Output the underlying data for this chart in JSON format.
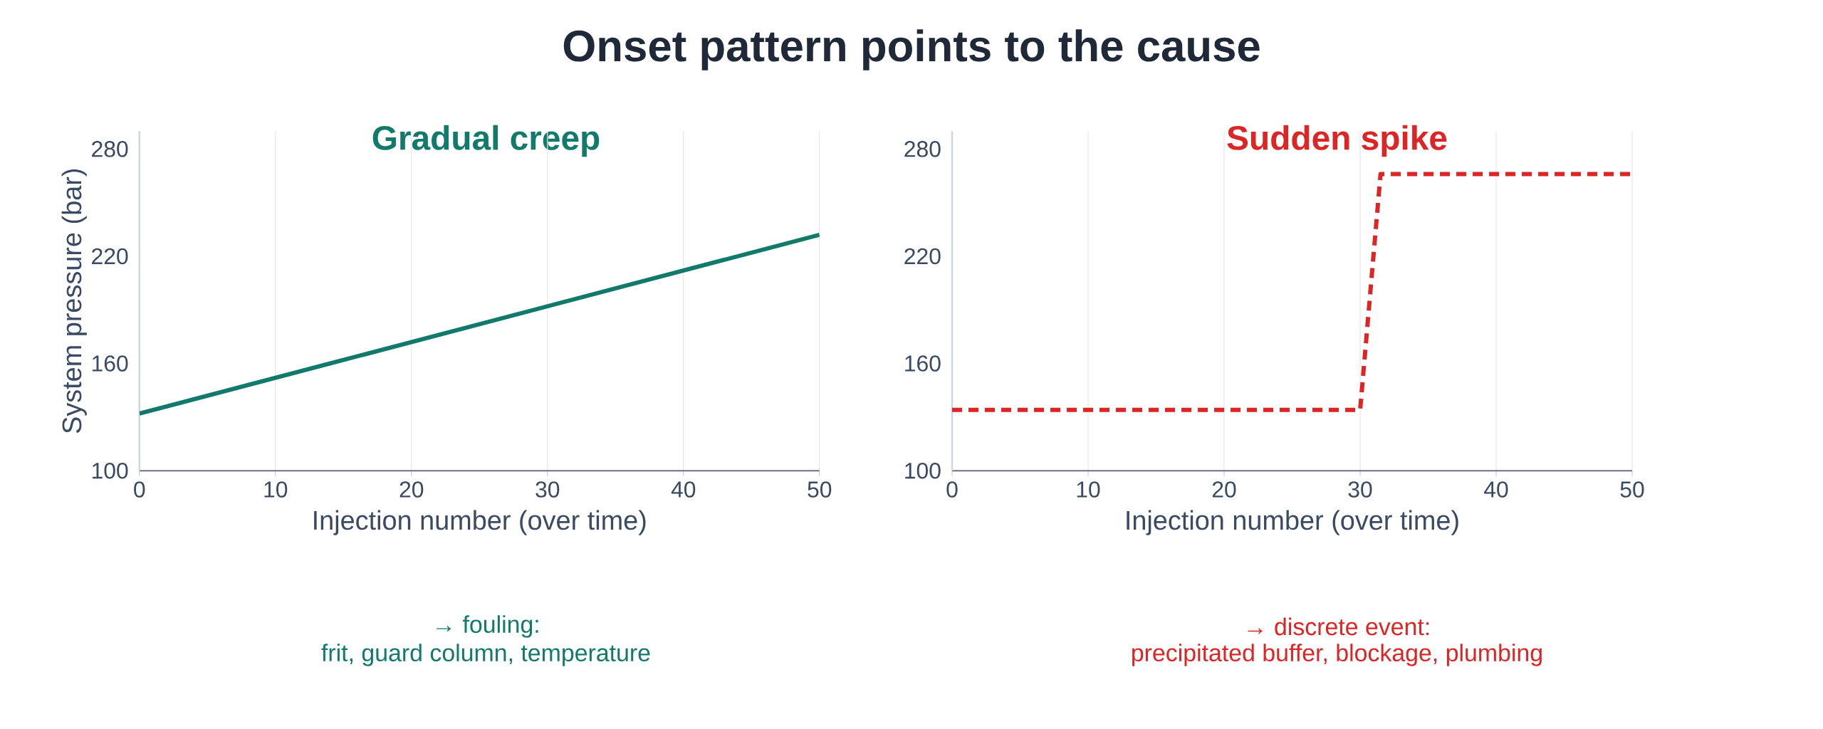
{
  "chart_data": [
    {
      "type": "line",
      "title": "Onset pattern points to the cause",
      "subtitle": "Gradual creep",
      "xlabel": "Injection number (over time)",
      "ylabel": "System pressure (bar)",
      "xlim": [
        0,
        50
      ],
      "ylim": [
        100,
        290
      ],
      "xticks": [
        0,
        10,
        20,
        30,
        40,
        50
      ],
      "yticks": [
        100,
        160,
        220,
        280
      ],
      "grid": "x",
      "line_style": "solid",
      "series": [
        {
          "color": "#127a6b",
          "x": [
            0,
            50
          ],
          "values": [
            132,
            232
          ]
        }
      ],
      "annotations": [
        "→ fouling:",
        "frit, guard column, temperature"
      ]
    },
    {
      "type": "line",
      "subtitle": "Sudden spike",
      "xlabel": "Injection number (over time)",
      "xlim": [
        0,
        50
      ],
      "ylim": [
        100,
        290
      ],
      "xticks": [
        0,
        10,
        20,
        30,
        40,
        50
      ],
      "yticks": [
        100,
        160,
        220,
        280
      ],
      "grid": "x",
      "line_style": "dashed",
      "series": [
        {
          "color": "#dc2626",
          "x": [
            0,
            30,
            31.5,
            50
          ],
          "values": [
            134,
            134,
            266,
            266
          ]
        }
      ],
      "annotations": [
        "→ discrete event:",
        "precipitated buffer, blockage, plumbing"
      ]
    }
  ]
}
